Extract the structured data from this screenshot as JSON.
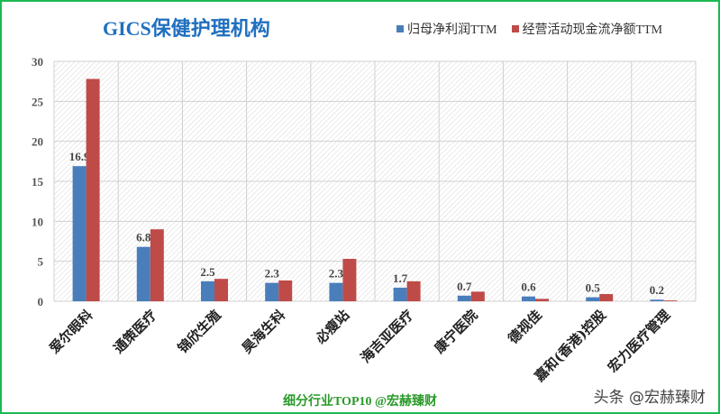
{
  "chart_data": {
    "type": "bar",
    "title": "GICS保健护理机构",
    "categories": [
      "爱尔眼科",
      "通策医疗",
      "锦欣生殖",
      "昊海生科",
      "必瘦站",
      "海吉亚医疗",
      "康宁医院",
      "德视佳",
      "嘉和(香港)控股",
      "宏力医疗管理"
    ],
    "series": [
      {
        "name": "归母净利润TTM",
        "color": "#4a7ebb",
        "values": [
          16.9,
          6.8,
          2.5,
          2.3,
          2.3,
          1.7,
          0.7,
          0.6,
          0.5,
          0.2
        ],
        "labels": [
          "16.9",
          "6.8",
          "2.5",
          "2.3",
          "2.3",
          "1.7",
          "0.7",
          "0.6",
          "0.5",
          "0.2"
        ]
      },
      {
        "name": "经营活动现金流净额TTM",
        "color": "#be4b48",
        "values": [
          27.8,
          9.0,
          2.8,
          2.6,
          5.3,
          2.5,
          1.2,
          0.3,
          0.9,
          0.1
        ]
      }
    ],
    "ylim": [
      0,
      30
    ],
    "yticks": [
      0,
      5,
      10,
      15,
      20,
      25,
      30
    ],
    "grid": true,
    "legend": "top-right"
  },
  "footer": "细分行业TOP10 @宏赫臻财",
  "watermark": "头条 @宏赫臻财"
}
